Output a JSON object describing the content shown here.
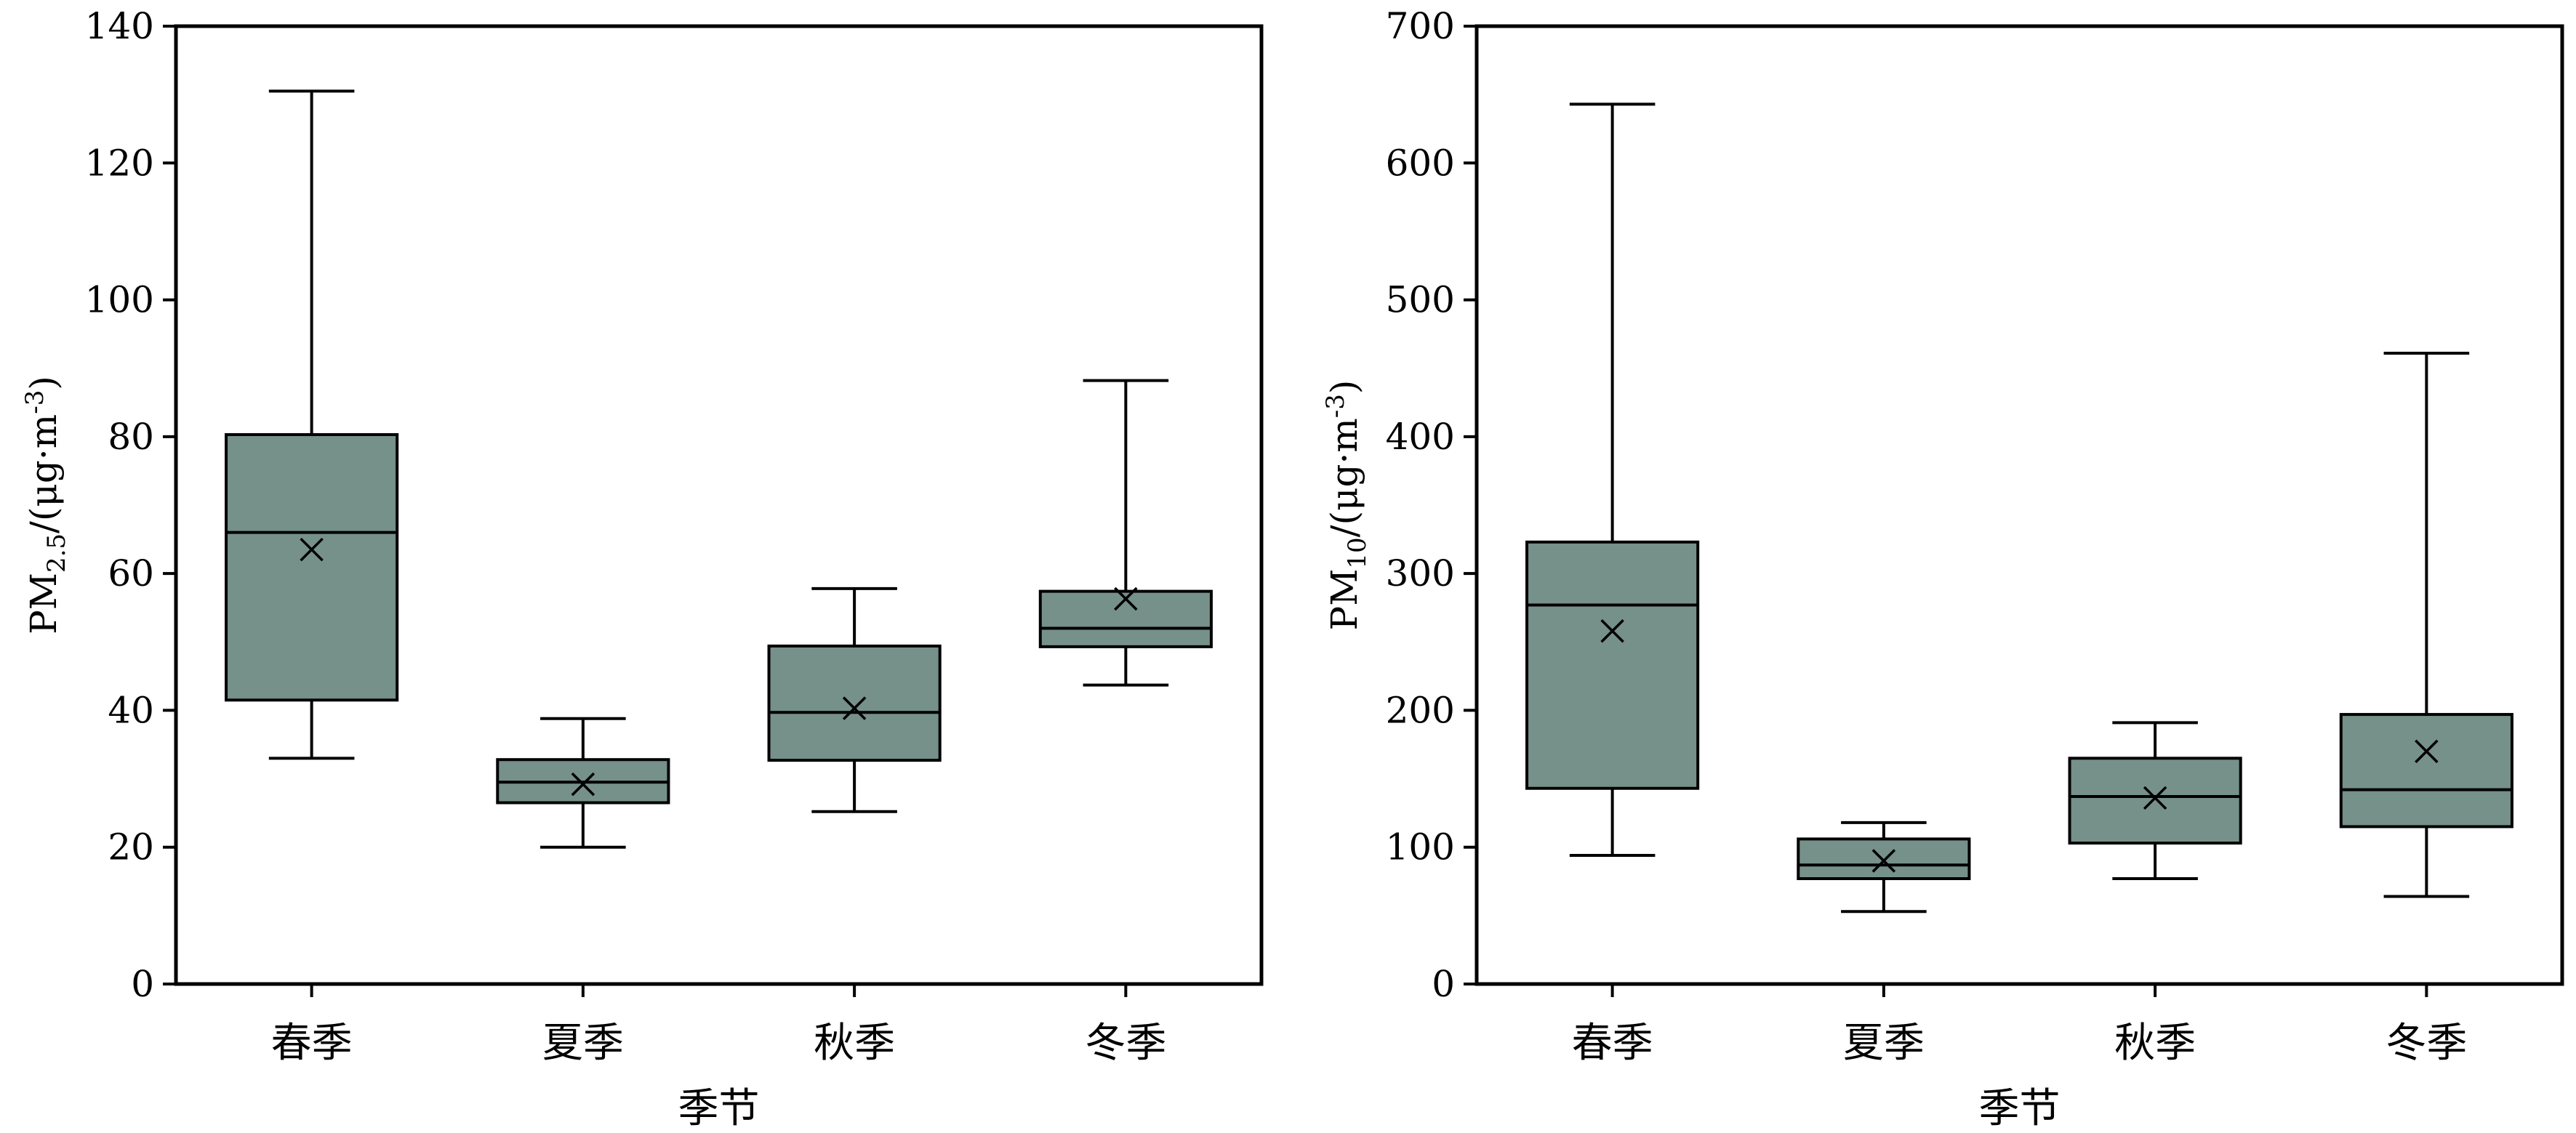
{
  "style": {
    "box_fill": "#76908a",
    "line_color": "#000000"
  },
  "chart_data": [
    {
      "type": "box",
      "ylabel": {
        "base": "PM",
        "sub": "2.5",
        "unit_pre": "/(μg·m",
        "sup": "-3",
        "unit_post": ")"
      },
      "xlabel": "季节",
      "ylim": [
        0,
        140
      ],
      "yticks": [
        0,
        20,
        40,
        60,
        80,
        100,
        120,
        140
      ],
      "categories": [
        "春季",
        "夏季",
        "秋季",
        "冬季"
      ],
      "boxes": [
        {
          "min": 33,
          "q1": 41.5,
          "median": 66,
          "q3": 80.3,
          "max": 130.5,
          "mean": 63.5
        },
        {
          "min": 20,
          "q1": 26.5,
          "median": 29.5,
          "q3": 32.8,
          "max": 38.8,
          "mean": 29.2
        },
        {
          "min": 25.2,
          "q1": 32.7,
          "median": 39.7,
          "q3": 49.4,
          "max": 57.8,
          "mean": 40.3
        },
        {
          "min": 43.7,
          "q1": 49.3,
          "median": 52,
          "q3": 57.4,
          "max": 88.2,
          "mean": 56.3
        }
      ]
    },
    {
      "type": "box",
      "ylabel": {
        "base": "PM",
        "sub": "10",
        "unit_pre": "/(μg·m",
        "sup": "-3",
        "unit_post": ")"
      },
      "xlabel": "季节",
      "ylim": [
        0,
        700
      ],
      "yticks": [
        0,
        100,
        200,
        300,
        400,
        500,
        600,
        700
      ],
      "categories": [
        "春季",
        "夏季",
        "秋季",
        "冬季"
      ],
      "boxes": [
        {
          "min": 94,
          "q1": 143,
          "median": 277,
          "q3": 323,
          "max": 643,
          "mean": 258
        },
        {
          "min": 53,
          "q1": 77,
          "median": 87,
          "q3": 106,
          "max": 118,
          "mean": 90
        },
        {
          "min": 77,
          "q1": 103,
          "median": 137,
          "q3": 165,
          "max": 191,
          "mean": 136
        },
        {
          "min": 64,
          "q1": 115,
          "median": 142,
          "q3": 197,
          "max": 461,
          "mean": 170
        }
      ]
    }
  ]
}
